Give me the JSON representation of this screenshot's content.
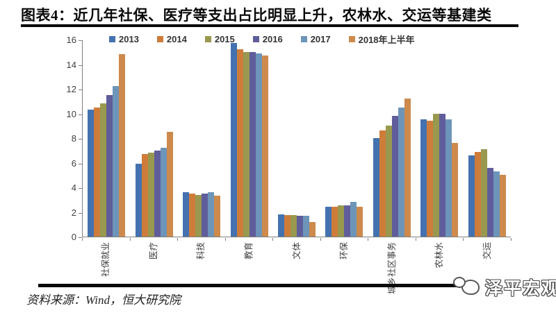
{
  "title": "图表4：近几年社保、医疗等支出占比明显上升，农林水、交运等基建类",
  "source": "资料来源：Wind，恒大研究院",
  "logo": {
    "text": "泽平宏观"
  },
  "chart_data": {
    "type": "bar",
    "title": "图表4：近几年社保、医疗等支出占比明显上升，农林水、交运等基建类",
    "categories": [
      "社保就业",
      "医疗",
      "科技",
      "教育",
      "文体",
      "环保",
      "城乡社区事务",
      "农林水",
      "交运"
    ],
    "series": [
      {
        "name": "2013",
        "color": "#4472B0",
        "values": [
          10.3,
          5.9,
          3.6,
          15.7,
          1.8,
          2.4,
          8.0,
          9.5,
          6.6
        ]
      },
      {
        "name": "2014",
        "color": "#CE7C3A",
        "values": [
          10.5,
          6.7,
          3.5,
          15.2,
          1.75,
          2.45,
          8.6,
          9.4,
          6.9
        ]
      },
      {
        "name": "2015",
        "color": "#98994F",
        "values": [
          10.8,
          6.8,
          3.4,
          15.0,
          1.75,
          2.55,
          9.0,
          10.0,
          7.1
        ]
      },
      {
        "name": "2016",
        "color": "#605D9B",
        "values": [
          11.5,
          7.0,
          3.5,
          15.0,
          1.7,
          2.55,
          9.8,
          10.0,
          5.6
        ]
      },
      {
        "name": "2017",
        "color": "#6D95B9",
        "values": [
          12.2,
          7.2,
          3.6,
          14.9,
          1.7,
          2.8,
          10.5,
          9.5,
          5.3
        ]
      },
      {
        "name": "2018年上半年",
        "color": "#CD8A4C",
        "values": [
          14.8,
          8.5,
          3.3,
          14.7,
          1.2,
          2.45,
          11.2,
          7.6,
          5.0
        ]
      }
    ],
    "xlabel": "",
    "ylabel": "",
    "ylim": [
      0,
      16
    ],
    "ytick_step": 2,
    "grid": false,
    "legend_position": "top"
  }
}
